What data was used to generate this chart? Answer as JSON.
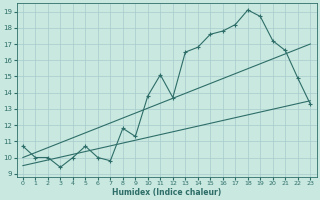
{
  "xlabel": "Humidex (Indice chaleur)",
  "xlim": [
    -0.5,
    23.5
  ],
  "ylim": [
    8.8,
    19.5
  ],
  "yticks": [
    9,
    10,
    11,
    12,
    13,
    14,
    15,
    16,
    17,
    18,
    19
  ],
  "xticks": [
    0,
    1,
    2,
    3,
    4,
    5,
    6,
    7,
    8,
    9,
    10,
    11,
    12,
    13,
    14,
    15,
    16,
    17,
    18,
    19,
    20,
    21,
    22,
    23
  ],
  "bg_color": "#c8e8e0",
  "line_color": "#2e6e68",
  "grid_color": "#a8cccc",
  "main_line": {
    "x": [
      0,
      1,
      2,
      3,
      4,
      5,
      6,
      7,
      8,
      9,
      10,
      11,
      12,
      13,
      14,
      15,
      16,
      17,
      18,
      19,
      20,
      21,
      22,
      23
    ],
    "y": [
      10.7,
      10.0,
      10.0,
      9.4,
      10.0,
      10.7,
      10.0,
      9.8,
      11.8,
      11.3,
      13.8,
      15.1,
      13.7,
      16.5,
      16.8,
      17.6,
      17.8,
      18.2,
      19.1,
      18.7,
      17.2,
      16.6,
      14.9,
      13.3
    ]
  },
  "reg_line1": {
    "x": [
      0,
      23
    ],
    "y": [
      10.0,
      17.0
    ]
  },
  "reg_line2": {
    "x": [
      0,
      23
    ],
    "y": [
      9.5,
      13.5
    ]
  }
}
